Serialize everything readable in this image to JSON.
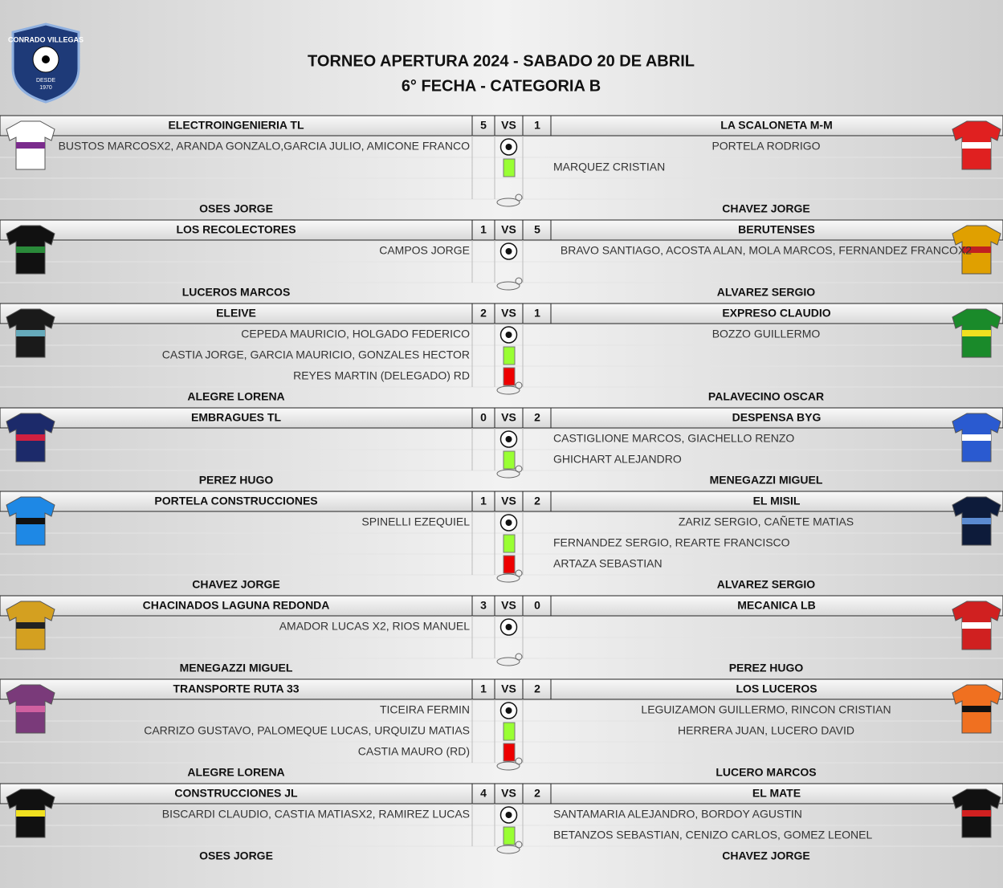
{
  "header": {
    "title": "TORNEO APERTURA 2024 - SABADO 20 DE ABRIL",
    "subtitle": "6° FECHA - CATEGORIA B",
    "logo": {
      "name": "CONRADO VILLEGAS",
      "since": "DESDE",
      "year": "1970"
    }
  },
  "vs_label": "VS",
  "matches": [
    {
      "home": "ELECTROINGENIERIA TL",
      "home_score": 5,
      "away_score": 1,
      "away": "LA SCALONETA M-M",
      "events": [
        {
          "icon": "goal",
          "home": "BUSTOS MARCOSX2, ARANDA GONZALO,GARCIA JULIO, AMICONE FRANCO",
          "away": "PORTELA RODRIGO"
        },
        {
          "icon": "yellow",
          "home": null,
          "away": "MARQUEZ CRISTIAN"
        }
      ],
      "home_referee": "OSES JORGE",
      "away_referee": "CHAVEZ JORGE"
    },
    {
      "home": "LOS RECOLECTORES",
      "home_score": 1,
      "away_score": 5,
      "away": "BERUTENSES",
      "events": [
        {
          "icon": "goal",
          "home": "CAMPOS JORGE",
          "away": "BRAVO SANTIAGO, ACOSTA ALAN, MOLA MARCOS, FERNANDEZ FRANCOX2"
        }
      ],
      "home_referee": "LUCEROS MARCOS",
      "away_referee": "ALVAREZ SERGIO"
    },
    {
      "home": "ELEIVE",
      "home_score": 2,
      "away_score": 1,
      "away": "EXPRESO CLAUDIO",
      "events": [
        {
          "icon": "goal",
          "home": "CEPEDA MAURICIO, HOLGADO FEDERICO",
          "away": "BOZZO GUILLERMO"
        },
        {
          "icon": "yellow",
          "home": "CASTIA JORGE, GARCIA MAURICIO, GONZALES HECTOR",
          "away": null
        },
        {
          "icon": "red",
          "home": "REYES MARTIN (DELEGADO) RD",
          "away": null
        }
      ],
      "home_referee": "ALEGRE LORENA",
      "away_referee": "PALAVECINO OSCAR"
    },
    {
      "home": "EMBRAGUES TL",
      "home_score": 0,
      "away_score": 2,
      "away": "DESPENSA BYG",
      "events": [
        {
          "icon": "goal",
          "home": null,
          "away": "CASTIGLIONE MARCOS, GIACHELLO RENZO"
        },
        {
          "icon": "yellow",
          "home": null,
          "away": "GHICHART ALEJANDRO"
        }
      ],
      "home_referee": "PEREZ HUGO",
      "away_referee": "MENEGAZZI MIGUEL"
    },
    {
      "home": "PORTELA CONSTRUCCIONES",
      "home_score": 1,
      "away_score": 2,
      "away": "EL MISIL",
      "events": [
        {
          "icon": "goal",
          "home": "SPINELLI EZEQUIEL",
          "away": "ZARIZ SERGIO, CAÑETE MATIAS"
        },
        {
          "icon": "yellow",
          "home": null,
          "away": "FERNANDEZ SERGIO, REARTE FRANCISCO"
        },
        {
          "icon": "red",
          "home": null,
          "away": "ARTAZA SEBASTIAN"
        }
      ],
      "home_referee": "CHAVEZ JORGE",
      "away_referee": "ALVAREZ SERGIO"
    },
    {
      "home": "CHACINADOS LAGUNA REDONDA",
      "home_score": 3,
      "away_score": 0,
      "away": "MECANICA LB",
      "events": [
        {
          "icon": "goal",
          "home": "AMADOR LUCAS X2, RIOS MANUEL",
          "away": null
        }
      ],
      "home_referee": "MENEGAZZI MIGUEL",
      "away_referee": "PEREZ HUGO"
    },
    {
      "home": "TRANSPORTE RUTA 33",
      "home_score": 1,
      "away_score": 2,
      "away": "LOS LUCEROS",
      "events": [
        {
          "icon": "goal",
          "home": "TICEIRA FERMIN",
          "away": "LEGUIZAMON GUILLERMO, RINCON CRISTIAN"
        },
        {
          "icon": "yellow",
          "home": "CARRIZO GUSTAVO, PALOMEQUE LUCAS, URQUIZU MATIAS",
          "away": "HERRERA JUAN, LUCERO DAVID"
        },
        {
          "icon": "red",
          "home": "CASTIA  MAURO (RD)",
          "away": null
        }
      ],
      "home_referee": "ALEGRE LORENA",
      "away_referee": "LUCERO MARCOS"
    },
    {
      "home": "CONSTRUCCIONES JL",
      "home_score": 4,
      "away_score": 2,
      "away": "EL MATE",
      "events": [
        {
          "icon": "goal",
          "home": "BISCARDI CLAUDIO, CASTIA MATIASX2, RAMIREZ LUCAS",
          "away": "SANTAMARIA ALEJANDRO, BORDOY AGUSTIN"
        },
        {
          "icon": "yellow",
          "home": null,
          "away": "BETANZOS SEBASTIAN, CENIZO CARLOS, GOMEZ LEONEL"
        }
      ],
      "home_referee": "OSES JORGE",
      "away_referee": "CHAVEZ JORGE"
    }
  ]
}
